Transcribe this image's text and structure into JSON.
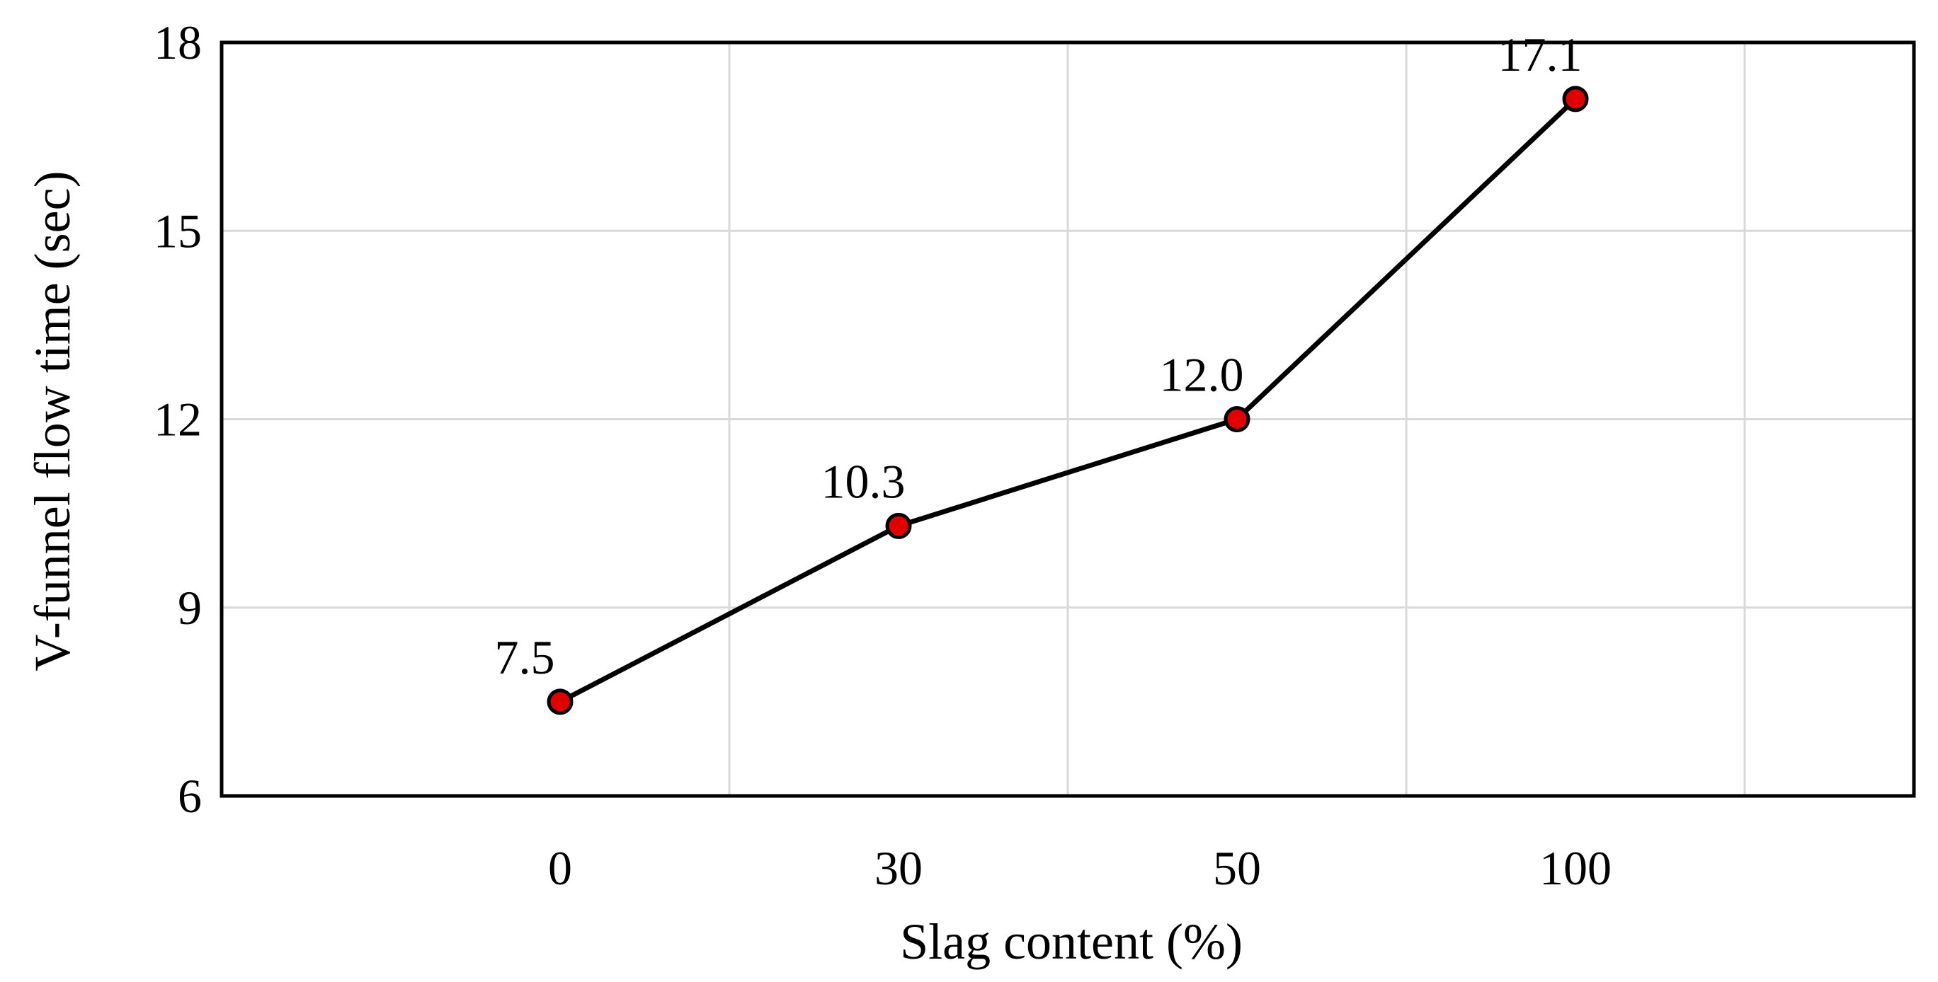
{
  "chart_data": {
    "type": "line",
    "title": "",
    "xlabel": "Slag content (%)",
    "ylabel": "V-funnel flow time (sec)",
    "categories": [
      "0",
      "30",
      "50",
      "100"
    ],
    "series": [
      {
        "values": [
          7.5,
          10.3,
          12.0,
          17.1
        ],
        "data_labels": [
          "7.5",
          "10.3",
          "12.0",
          "17.1"
        ]
      }
    ],
    "ylim": [
      6,
      18
    ],
    "yticks": [
      6,
      9,
      12,
      15,
      18
    ],
    "grid": true,
    "legend": "none",
    "colors": {
      "line": "#000000",
      "marker_fill": "#e00000",
      "marker_edge": "#000000",
      "grid": "#d9d9d9"
    }
  }
}
